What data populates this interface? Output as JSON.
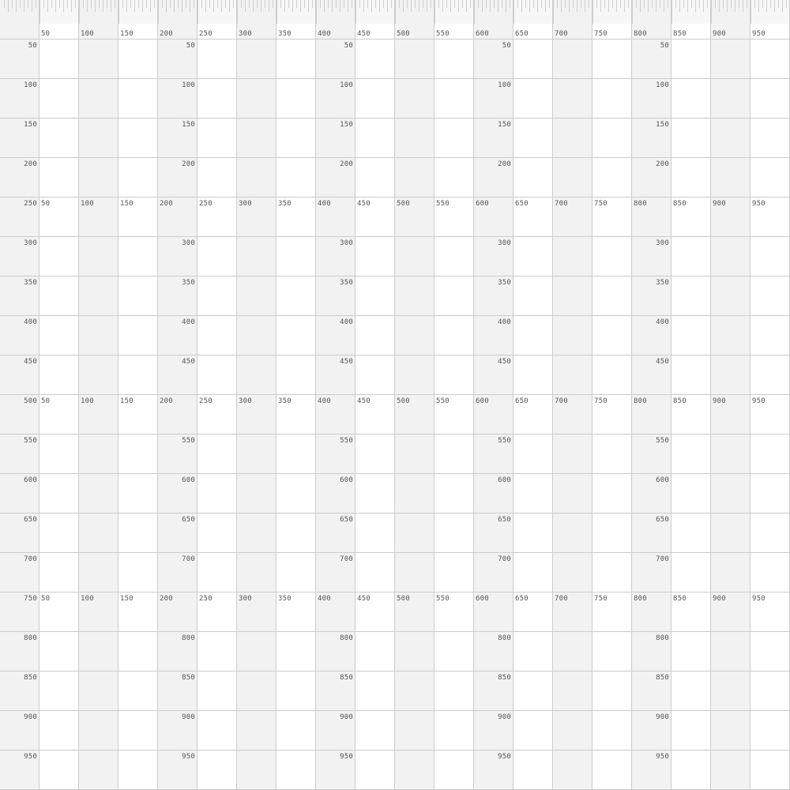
{
  "ruler": {
    "column_labels": [
      "50",
      "100",
      "150",
      "200",
      "250",
      "300",
      "350",
      "400",
      "450",
      "500",
      "550",
      "600",
      "650",
      "700",
      "750",
      "800",
      "850",
      "900",
      "950"
    ],
    "row_labels": [
      "50",
      "100",
      "150",
      "200",
      "250",
      "300",
      "350",
      "400",
      "450",
      "500",
      "550",
      "600",
      "650",
      "700",
      "750",
      "800",
      "850",
      "900",
      "950"
    ],
    "full_row_labels": [
      "250",
      "500",
      "750"
    ],
    "colors": {
      "background": "#ffffff",
      "band": "#f2f2f2",
      "grid_line": "#cccccc",
      "tick": "#cfcfcf",
      "label": "#555555"
    }
  }
}
